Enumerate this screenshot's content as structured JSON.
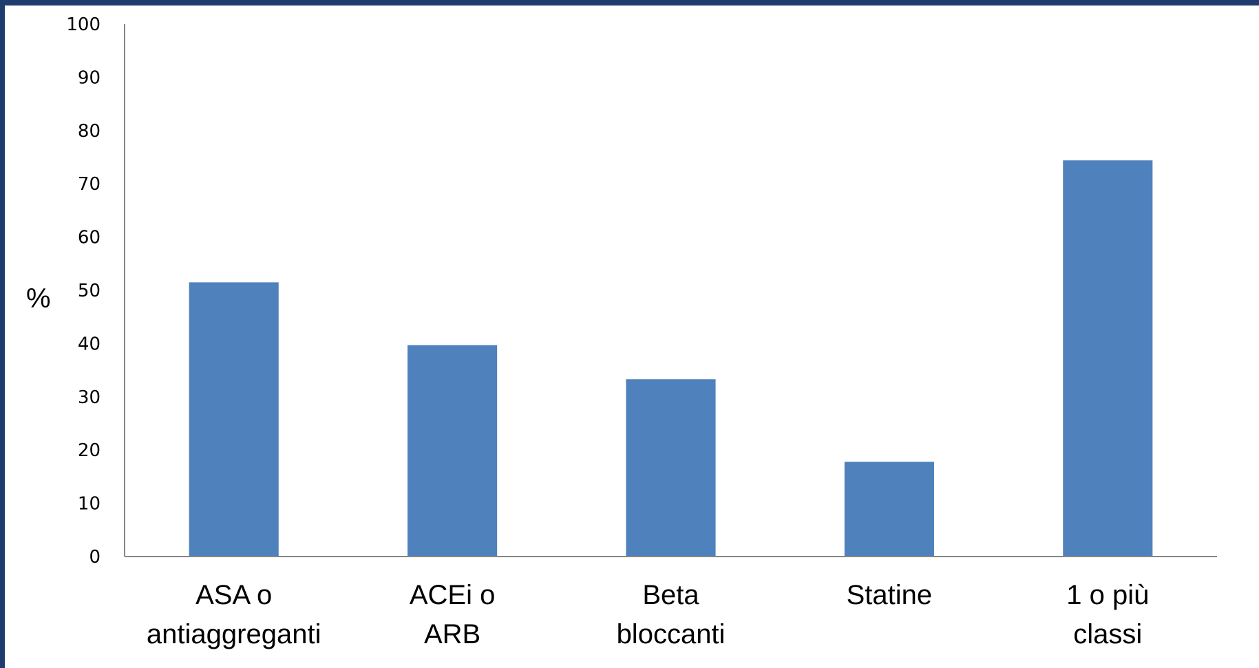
{
  "chart_data": {
    "type": "bar",
    "categories": [
      [
        "ASA o",
        "antiaggreganti"
      ],
      [
        "ACEi o",
        "ARB"
      ],
      [
        "Beta",
        "bloccanti"
      ],
      [
        "Statine"
      ],
      [
        "1 o più",
        "classi"
      ]
    ],
    "values": [
      51.5,
      39.7,
      33.3,
      17.8,
      74.4
    ],
    "ylabel": "%",
    "ylim": [
      0,
      100
    ],
    "yticks": [
      0,
      10,
      20,
      30,
      40,
      50,
      60,
      70,
      80,
      90,
      100
    ],
    "grid": false,
    "bar_color": "#4f81bd"
  }
}
